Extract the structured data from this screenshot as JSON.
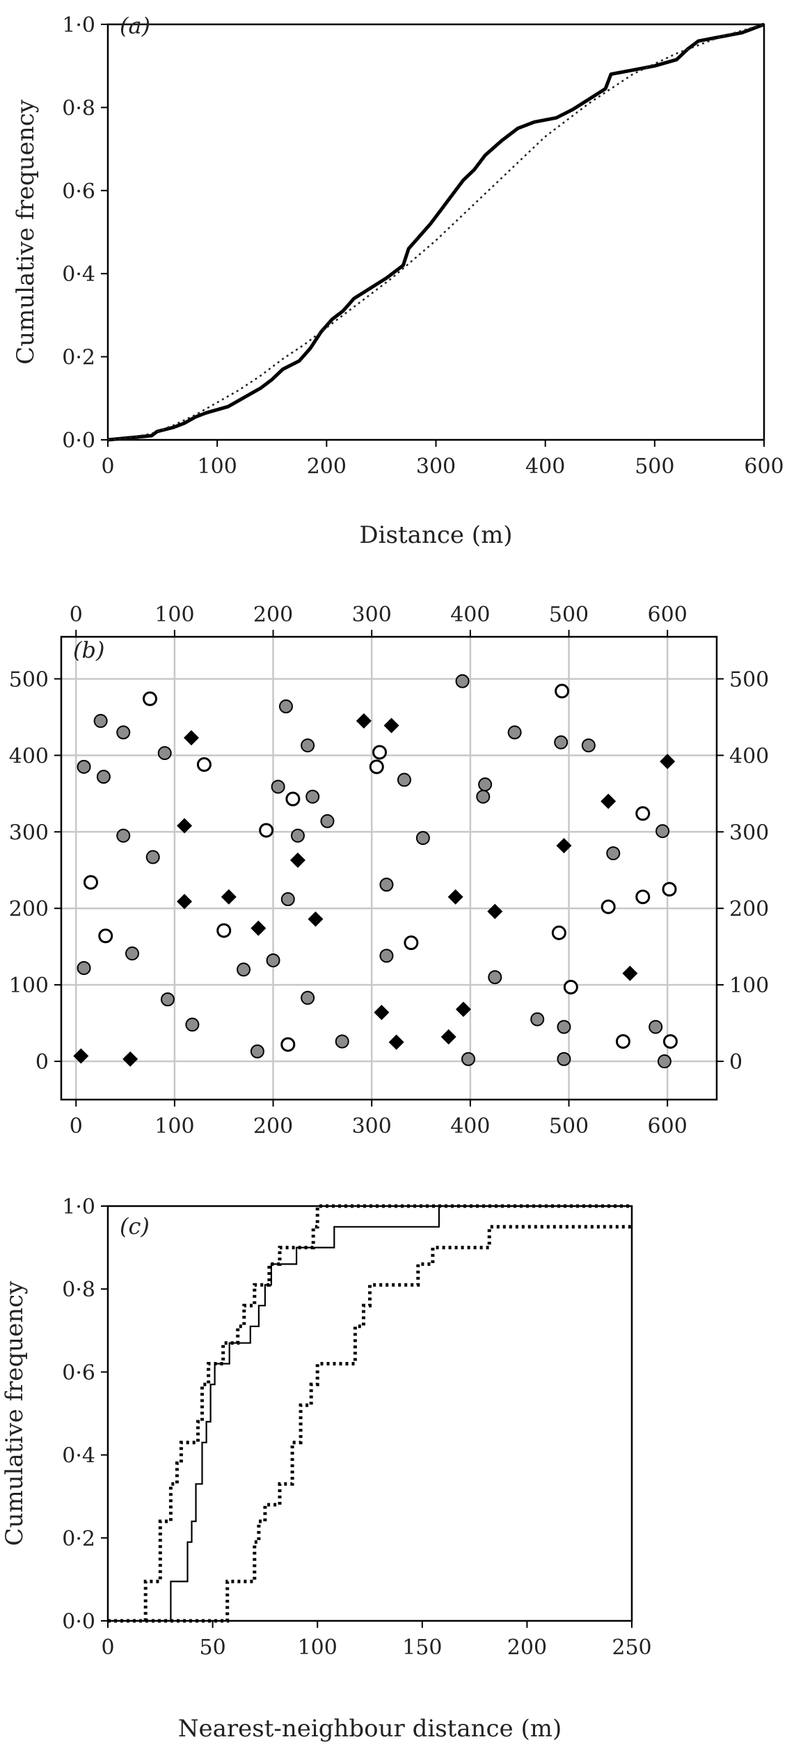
{
  "chart_data": [
    {
      "panel": "(a)",
      "type": "line",
      "xlabel": "Distance (m)",
      "ylabel": "Cumulative frequency",
      "xlim": [
        0,
        600
      ],
      "ylim": [
        0,
        1
      ],
      "x_ticks": [
        "0",
        "100",
        "200",
        "300",
        "400",
        "500",
        "600"
      ],
      "y_ticks": [
        "0·0",
        "0·2",
        "0·4",
        "0·6",
        "0·8",
        "1·0"
      ],
      "grid": false,
      "series": [
        {
          "style": "solid-thick",
          "x": [
            0,
            20,
            40,
            45,
            60,
            70,
            80,
            90,
            110,
            130,
            140,
            150,
            160,
            175,
            185,
            195,
            205,
            215,
            225,
            240,
            255,
            270,
            275,
            285,
            295,
            305,
            315,
            325,
            335,
            345,
            360,
            375,
            390,
            410,
            425,
            440,
            455,
            460,
            480,
            500,
            520,
            530,
            540,
            560,
            580,
            590,
            600
          ],
          "y": [
            0.0,
            0.005,
            0.01,
            0.02,
            0.03,
            0.04,
            0.055,
            0.065,
            0.08,
            0.11,
            0.125,
            0.145,
            0.17,
            0.19,
            0.22,
            0.26,
            0.29,
            0.31,
            0.34,
            0.365,
            0.39,
            0.42,
            0.46,
            0.49,
            0.52,
            0.555,
            0.59,
            0.625,
            0.65,
            0.685,
            0.72,
            0.75,
            0.765,
            0.775,
            0.795,
            0.82,
            0.845,
            0.88,
            0.89,
            0.9,
            0.915,
            0.94,
            0.96,
            0.97,
            0.98,
            0.99,
            1.0
          ]
        },
        {
          "style": "dotted",
          "x": [
            0,
            20,
            40,
            60,
            80,
            100,
            120,
            140,
            160,
            180,
            200,
            220,
            240,
            260,
            280,
            300,
            320,
            340,
            360,
            380,
            400,
            420,
            440,
            460,
            480,
            500,
            520,
            540,
            560,
            580,
            600
          ],
          "y": [
            0.0,
            0.005,
            0.015,
            0.035,
            0.06,
            0.09,
            0.12,
            0.155,
            0.195,
            0.23,
            0.27,
            0.31,
            0.35,
            0.39,
            0.435,
            0.48,
            0.53,
            0.58,
            0.63,
            0.68,
            0.73,
            0.77,
            0.81,
            0.845,
            0.88,
            0.905,
            0.93,
            0.95,
            0.97,
            0.985,
            1.0
          ]
        }
      ]
    },
    {
      "panel": "(b)",
      "type": "scatter",
      "xlim": [
        -15,
        650
      ],
      "ylim": [
        -50,
        555
      ],
      "x_ticks": [
        "0",
        "100",
        "200",
        "300",
        "400",
        "500",
        "600"
      ],
      "y_ticks": [
        "0",
        "100",
        "200",
        "300",
        "400",
        "500"
      ],
      "grid": true,
      "series": [
        {
          "marker": "grey-circle",
          "points": [
            [
              8,
              385
            ],
            [
              25,
              445
            ],
            [
              28,
              372
            ],
            [
              48,
              295
            ],
            [
              48,
              430
            ],
            [
              57,
              141
            ],
            [
              8,
              122
            ],
            [
              78,
              267
            ],
            [
              90,
              403
            ],
            [
              93,
              81
            ],
            [
              118,
              48
            ],
            [
              170,
              120
            ],
            [
              184,
              13
            ],
            [
              200,
              132
            ],
            [
              205,
              359
            ],
            [
              215,
              212
            ],
            [
              213,
              464
            ],
            [
              225,
              295
            ],
            [
              235,
              413
            ],
            [
              240,
              346
            ],
            [
              235,
              83
            ],
            [
              255,
              314
            ],
            [
              270,
              26
            ],
            [
              315,
              231
            ],
            [
              315,
              138
            ],
            [
              333,
              368
            ],
            [
              352,
              292
            ],
            [
              392,
              497
            ],
            [
              398,
              3
            ],
            [
              413,
              346
            ],
            [
              415,
              362
            ],
            [
              425,
              110
            ],
            [
              445,
              430
            ],
            [
              468,
              55
            ],
            [
              492,
              417
            ],
            [
              495,
              45
            ],
            [
              495,
              3
            ],
            [
              520,
              413
            ],
            [
              545,
              272
            ],
            [
              588,
              45
            ],
            [
              595,
              301
            ],
            [
              597,
              0
            ]
          ]
        },
        {
          "marker": "white-circle",
          "points": [
            [
              15,
              234
            ],
            [
              30,
              164
            ],
            [
              75,
              474
            ],
            [
              130,
              388
            ],
            [
              150,
              171
            ],
            [
              193,
              302
            ],
            [
              215,
              22
            ],
            [
              220,
              343
            ],
            [
              305,
              385
            ],
            [
              308,
              404
            ],
            [
              340,
              155
            ],
            [
              490,
              168
            ],
            [
              493,
              484
            ],
            [
              502,
              97
            ],
            [
              540,
              202
            ],
            [
              555,
              26
            ],
            [
              575,
              324
            ],
            [
              575,
              215
            ],
            [
              602,
              225
            ],
            [
              603,
              26
            ]
          ]
        },
        {
          "marker": "black-diamond",
          "points": [
            [
              5,
              7
            ],
            [
              55,
              3
            ],
            [
              110,
              308
            ],
            [
              110,
              209
            ],
            [
              117,
              423
            ],
            [
              155,
              215
            ],
            [
              185,
              174
            ],
            [
              225,
              263
            ],
            [
              243,
              186
            ],
            [
              292,
              445
            ],
            [
              310,
              64
            ],
            [
              320,
              439
            ],
            [
              325,
              25
            ],
            [
              378,
              32
            ],
            [
              385,
              215
            ],
            [
              393,
              68
            ],
            [
              425,
              196
            ],
            [
              495,
              282
            ],
            [
              540,
              340
            ],
            [
              562,
              115
            ],
            [
              600,
              392
            ]
          ]
        }
      ]
    },
    {
      "panel": "(c)",
      "type": "line",
      "xlabel": "Nearest-neighbour distance (m)",
      "ylabel": "Cumulative frequency",
      "xlim": [
        0,
        250
      ],
      "ylim": [
        0,
        1
      ],
      "x_ticks": [
        "0",
        "50",
        "100",
        "150",
        "200",
        "250"
      ],
      "y_ticks": [
        "0·0",
        "0·2",
        "0·4",
        "0·6",
        "0·8",
        "1·0"
      ],
      "grid": false,
      "series": [
        {
          "style": "solid-thin",
          "steps": [
            [
              0,
              0
            ],
            [
              30,
              0.095
            ],
            [
              38,
              0.19
            ],
            [
              40,
              0.24
            ],
            [
              42,
              0.33
            ],
            [
              45,
              0.43
            ],
            [
              47,
              0.48
            ],
            [
              49,
              0.57
            ],
            [
              51,
              0.62
            ],
            [
              58,
              0.67
            ],
            [
              68,
              0.71
            ],
            [
              72,
              0.76
            ],
            [
              75,
              0.81
            ],
            [
              78,
              0.86
            ],
            [
              90,
              0.9
            ],
            [
              108,
              0.95
            ],
            [
              118,
              0.95
            ],
            [
              158,
              1.0
            ],
            [
              250,
              1.0
            ]
          ]
        },
        {
          "style": "dotted-upper",
          "steps": [
            [
              0,
              0
            ],
            [
              18,
              0.095
            ],
            [
              25,
              0.24
            ],
            [
              30,
              0.33
            ],
            [
              33,
              0.38
            ],
            [
              35,
              0.43
            ],
            [
              43,
              0.48
            ],
            [
              45,
              0.57
            ],
            [
              48,
              0.62
            ],
            [
              55,
              0.67
            ],
            [
              62,
              0.71
            ],
            [
              65,
              0.76
            ],
            [
              70,
              0.81
            ],
            [
              77,
              0.86
            ],
            [
              82,
              0.9
            ],
            [
              98,
              0.95
            ],
            [
              100,
              1.0
            ],
            [
              250,
              1.0
            ]
          ]
        },
        {
          "style": "dotted-lower",
          "steps": [
            [
              0,
              0
            ],
            [
              57,
              0.095
            ],
            [
              70,
              0.19
            ],
            [
              72,
              0.24
            ],
            [
              75,
              0.28
            ],
            [
              82,
              0.33
            ],
            [
              88,
              0.43
            ],
            [
              92,
              0.52
            ],
            [
              97,
              0.57
            ],
            [
              100,
              0.62
            ],
            [
              118,
              0.71
            ],
            [
              122,
              0.76
            ],
            [
              125,
              0.81
            ],
            [
              148,
              0.86
            ],
            [
              155,
              0.9
            ],
            [
              182,
              0.95
            ],
            [
              250,
              0.95
            ]
          ]
        }
      ]
    }
  ]
}
